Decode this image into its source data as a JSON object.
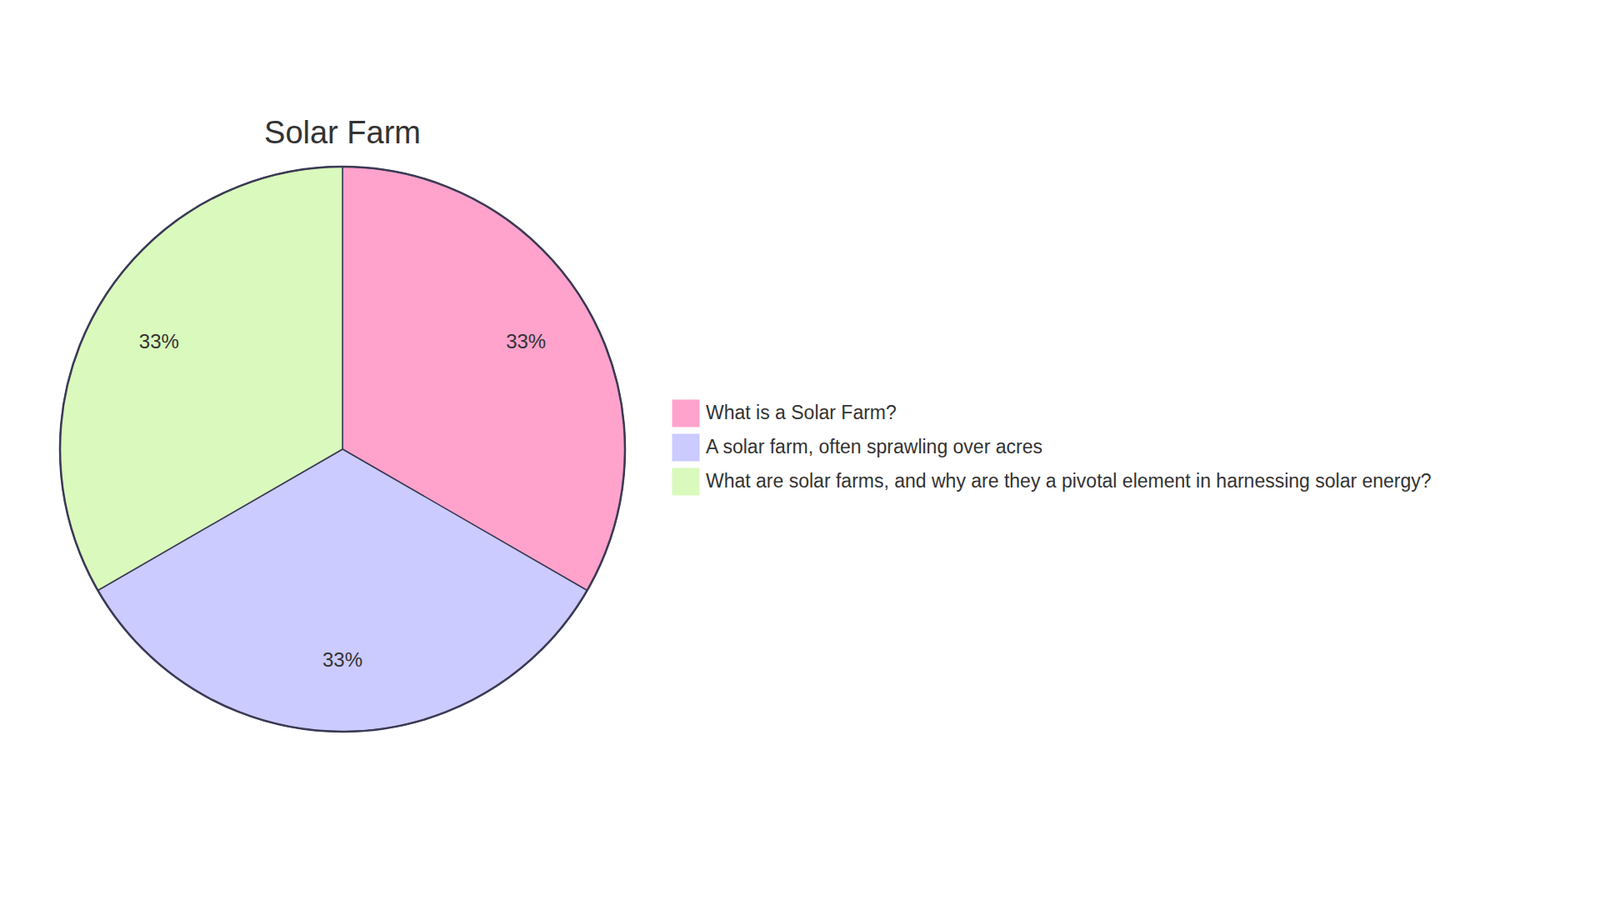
{
  "chart_data": {
    "type": "pie",
    "title": "Solar Farm",
    "categories": [
      "What is a Solar Farm?",
      "A solar farm, often sprawling over acres",
      "What are solar farms, and why are they a pivotal element in harnessing solar energy?"
    ],
    "values": [
      33,
      33,
      33
    ],
    "value_labels": [
      "33%",
      "33%",
      "33%"
    ],
    "colors": [
      "#ffa3cc",
      "#cbcbff",
      "#daf9bc"
    ],
    "data_labels": true,
    "legend": "right"
  }
}
